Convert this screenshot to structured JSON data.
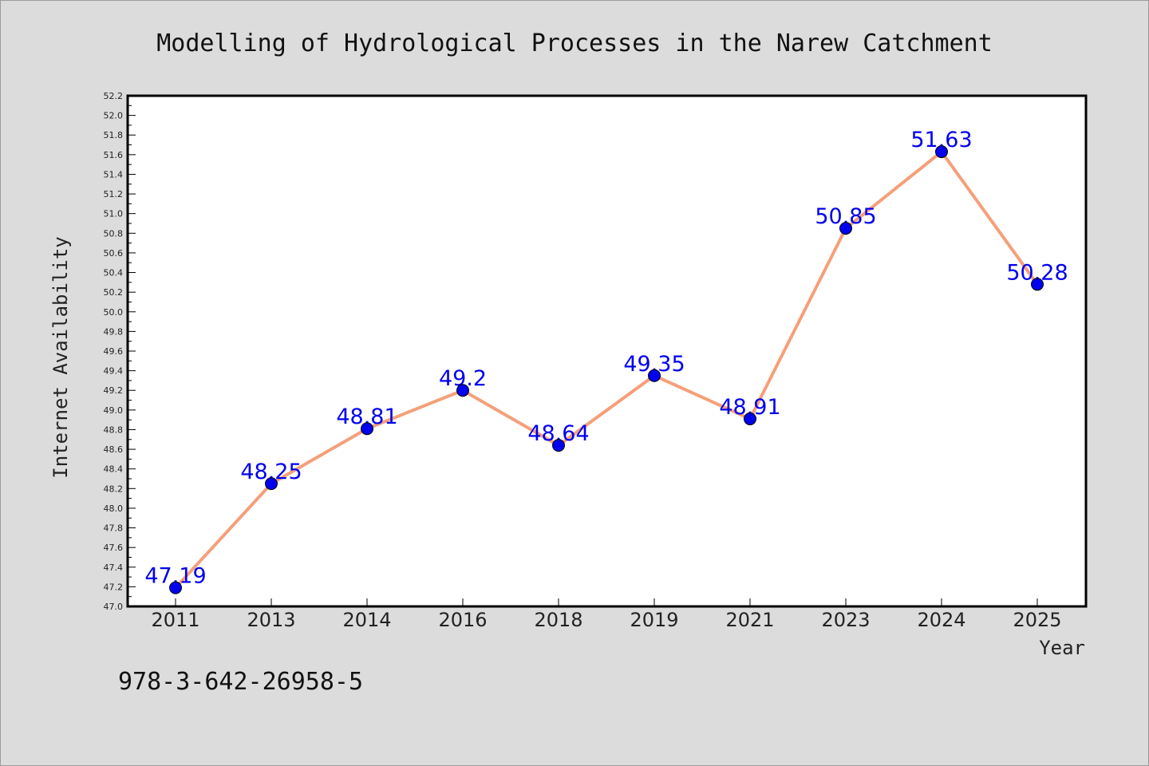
{
  "footer_text": "978-3-642-26958-5",
  "chart_data": {
    "type": "line",
    "title": "Modelling of Hydrological Processes in the Narew Catchment",
    "xlabel": "Year",
    "ylabel": "Internet Availability",
    "categories": [
      "2011",
      "2013",
      "2014",
      "2016",
      "2018",
      "2019",
      "2021",
      "2023",
      "2024",
      "2025"
    ],
    "values": [
      47.19,
      48.25,
      48.81,
      49.2,
      48.64,
      49.35,
      48.91,
      50.85,
      51.63,
      50.28
    ],
    "data_labels": [
      "47.19",
      "48.25",
      "48.81",
      "49.2",
      "48.64",
      "49.35",
      "48.91",
      "50.85",
      "51.63",
      "50.28"
    ],
    "ylim": [
      47.0,
      52.2
    ],
    "yticks": [
      "47.0",
      "47.2",
      "47.4",
      "47.6",
      "47.8",
      "48.0",
      "48.2",
      "48.4",
      "48.6",
      "48.8",
      "49.0",
      "49.2",
      "49.4",
      "49.6",
      "49.8",
      "50.0",
      "50.2",
      "50.4",
      "50.6",
      "50.8",
      "51.0",
      "51.2",
      "51.4",
      "51.6",
      "51.8",
      "52.0",
      "52.2"
    ],
    "line_color": "#f4a07a",
    "marker_color": "#0000ee",
    "label_color": "#0000ee",
    "plot_background": "#ffffff",
    "figure_background": "#dcdcdc",
    "grid": false,
    "legend": "none"
  }
}
